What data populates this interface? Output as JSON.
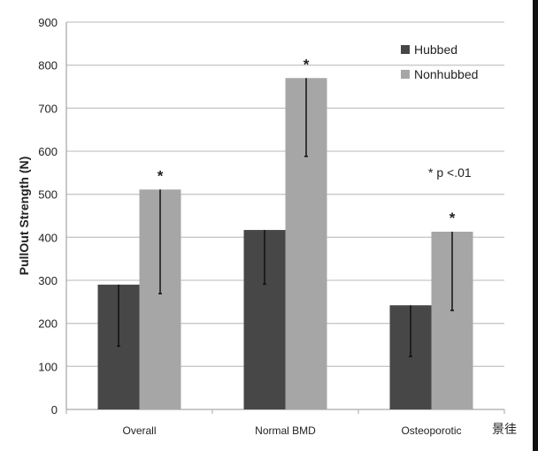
{
  "chart_data": {
    "type": "bar",
    "title": "",
    "xlabel": "",
    "ylabel": "PullOut Strength (N)",
    "ylim": [
      0,
      900
    ],
    "yticks": [
      "0",
      "100",
      "200",
      "300",
      "400",
      "500",
      "600",
      "700",
      "800",
      "900"
    ],
    "grid": true,
    "legend_position": "top-right",
    "categories": [
      "Overall",
      "Normal BMD",
      "Osteoporotic"
    ],
    "series": [
      {
        "name": "Hubbed",
        "color": "#474747",
        "values": [
          290,
          417,
          242
        ],
        "error_lower": [
          147,
          291,
          123
        ]
      },
      {
        "name": "Nonhubbed",
        "color": "#a6a6a6",
        "values": [
          511,
          770,
          413
        ],
        "error_lower": [
          269,
          588,
          230
        ]
      }
    ],
    "significance_marks": [
      "*",
      "*",
      "*"
    ],
    "annotation": "* p <.01"
  },
  "watermark": "景徍"
}
